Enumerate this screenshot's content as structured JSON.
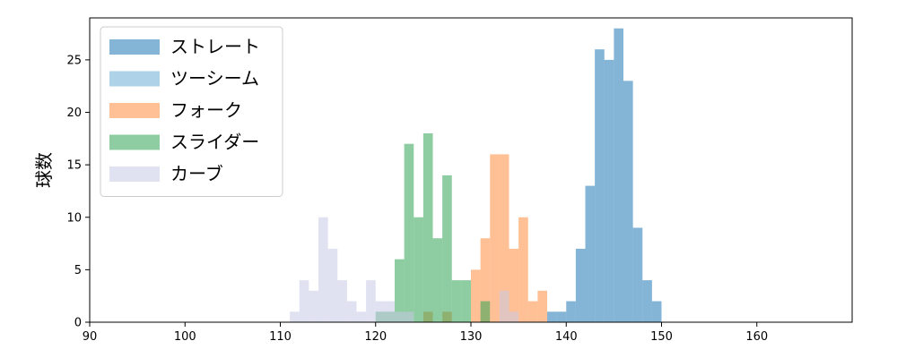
{
  "chart_data": {
    "type": "histogram",
    "title": "",
    "xlabel": "",
    "ylabel": "球数",
    "xlim": [
      90,
      170
    ],
    "ylim": [
      0,
      29
    ],
    "xticks": [
      90,
      100,
      110,
      120,
      130,
      140,
      150,
      160
    ],
    "yticks": [
      0,
      5,
      10,
      15,
      20,
      25
    ],
    "bin_width": 1,
    "grid": false,
    "legend_position": "upper-left",
    "series": [
      {
        "name": "ストレート",
        "color": "#1f77b4",
        "bins": [
          [
            138,
            1
          ],
          [
            139,
            1
          ],
          [
            140,
            2
          ],
          [
            141,
            7
          ],
          [
            142,
            13
          ],
          [
            143,
            26
          ],
          [
            144,
            25
          ],
          [
            145,
            28
          ],
          [
            146,
            23
          ],
          [
            147,
            9
          ],
          [
            148,
            4
          ],
          [
            149,
            2
          ]
        ]
      },
      {
        "name": "ツーシーム",
        "color": "#6baed6",
        "bins": []
      },
      {
        "name": "フォーク",
        "color": "#fd8d3c",
        "bins": [
          [
            125,
            1
          ],
          [
            127,
            1
          ],
          [
            130,
            5
          ],
          [
            131,
            8
          ],
          [
            132,
            16
          ],
          [
            133,
            16
          ],
          [
            134,
            7
          ],
          [
            135,
            10
          ],
          [
            136,
            2
          ],
          [
            137,
            3
          ]
        ]
      },
      {
        "name": "スライダー",
        "color": "#31a354",
        "bins": [
          [
            120,
            1
          ],
          [
            121,
            1
          ],
          [
            122,
            6
          ],
          [
            123,
            17
          ],
          [
            124,
            10
          ],
          [
            125,
            18
          ],
          [
            126,
            8
          ],
          [
            127,
            14
          ],
          [
            128,
            4
          ],
          [
            129,
            4
          ],
          [
            131,
            2
          ]
        ]
      },
      {
        "name": "カーブ",
        "color": "#c7c9e6",
        "bins": [
          [
            111,
            1
          ],
          [
            112,
            4
          ],
          [
            113,
            3
          ],
          [
            114,
            10
          ],
          [
            115,
            7
          ],
          [
            116,
            4
          ],
          [
            117,
            2
          ],
          [
            118,
            1
          ],
          [
            119,
            4
          ],
          [
            120,
            2
          ],
          [
            121,
            2
          ],
          [
            122,
            1
          ],
          [
            123,
            1
          ],
          [
            133,
            3
          ],
          [
            134,
            1
          ]
        ]
      }
    ]
  }
}
